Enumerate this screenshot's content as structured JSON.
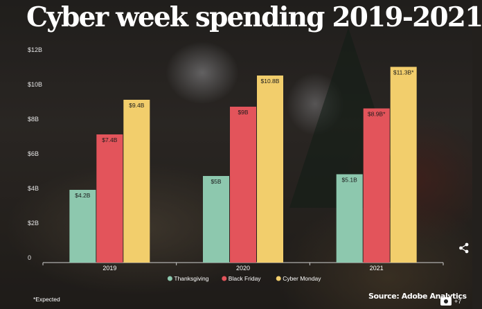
{
  "title": "Cyber week spending 2019-2021",
  "footnote": "*Expected",
  "source": "Source: Adobe Analytics",
  "photo_count": "+7",
  "icons": {
    "share": "share-icon",
    "camera": "camera-icon"
  },
  "chart_data": {
    "type": "bar",
    "title": "Cyber week spending 2019-2021",
    "xlabel": "",
    "ylabel": "",
    "categories": [
      "2019",
      "2020",
      "2021"
    ],
    "ylim": [
      0,
      12
    ],
    "yticks": [
      0,
      2,
      4,
      6,
      8,
      10,
      12
    ],
    "ytick_labels": [
      "0",
      "$2B",
      "$4B",
      "$6B",
      "$8B",
      "$10B",
      "$12B"
    ],
    "grid": false,
    "legend_position": "bottom",
    "series": [
      {
        "name": "Thanksgiving",
        "color": "#8dc8ae",
        "values": [
          4.2,
          5.0,
          5.1
        ],
        "labels": [
          "$4.2B",
          "$5B",
          "$5.1B"
        ]
      },
      {
        "name": "Black Friday",
        "color": "#e3545b",
        "values": [
          7.4,
          9.0,
          8.9
        ],
        "labels": [
          "$7.4B",
          "$9B",
          "$8.9B*"
        ]
      },
      {
        "name": "Cyber Monday",
        "color": "#f2ce6c",
        "values": [
          9.4,
          10.8,
          11.3
        ],
        "labels": [
          "$9.4B",
          "$10.8B",
          "$11.3B*"
        ]
      }
    ]
  }
}
